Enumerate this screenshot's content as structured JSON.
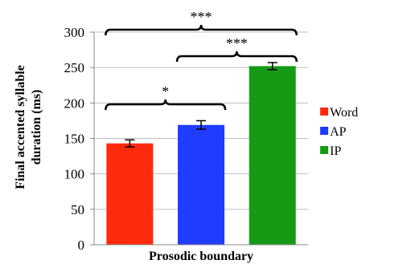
{
  "chart_data": {
    "type": "bar",
    "title": "",
    "xlabel": "Prosodic boundary",
    "ylabel": "Final accented syllable duration (ms)",
    "ylabel_lines": [
      "Final accented syllable",
      "duration (ms)"
    ],
    "ylim": [
      0,
      300
    ],
    "yticks": [
      "0",
      "50",
      "100",
      "150",
      "200",
      "250",
      "300"
    ],
    "ytick_values": [
      0,
      50,
      100,
      150,
      200,
      250,
      300
    ],
    "grid": true,
    "legend_position": "right",
    "categories": [
      "Word",
      "AP",
      "IP"
    ],
    "values": [
      143,
      169,
      252
    ],
    "errors": [
      5,
      6,
      5
    ],
    "colors": [
      "#ff2a0d",
      "#1f3cff",
      "#169a16"
    ],
    "significance": [
      {
        "from": 0,
        "to": 1,
        "label": "*"
      },
      {
        "from": 1,
        "to": 2,
        "label": "***"
      },
      {
        "from": 0,
        "to": 2,
        "label": "***"
      }
    ]
  }
}
